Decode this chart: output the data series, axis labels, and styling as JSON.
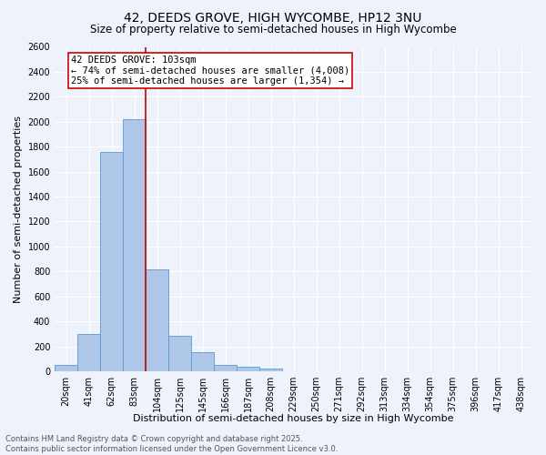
{
  "title": "42, DEEDS GROVE, HIGH WYCOMBE, HP12 3NU",
  "subtitle": "Size of property relative to semi-detached houses in High Wycombe",
  "xlabel": "Distribution of semi-detached houses by size in High Wycombe",
  "ylabel": "Number of semi-detached properties",
  "bin_labels": [
    "20sqm",
    "41sqm",
    "62sqm",
    "83sqm",
    "104sqm",
    "125sqm",
    "145sqm",
    "166sqm",
    "187sqm",
    "208sqm",
    "229sqm",
    "250sqm",
    "271sqm",
    "292sqm",
    "313sqm",
    "334sqm",
    "354sqm",
    "375sqm",
    "396sqm",
    "417sqm",
    "438sqm"
  ],
  "bar_values": [
    50,
    300,
    1760,
    2020,
    820,
    285,
    155,
    50,
    35,
    25,
    0,
    0,
    0,
    0,
    0,
    0,
    0,
    0,
    0,
    0,
    0
  ],
  "bar_color": "#aec6e8",
  "bar_edge_color": "#5b9bd5",
  "vline_color": "#cc0000",
  "annotation_text": "42 DEEDS GROVE: 103sqm\n← 74% of semi-detached houses are smaller (4,008)\n25% of semi-detached houses are larger (1,354) →",
  "annotation_box_color": "#ffffff",
  "annotation_box_edge": "#cc0000",
  "ylim": [
    0,
    2600
  ],
  "yticks": [
    0,
    200,
    400,
    600,
    800,
    1000,
    1200,
    1400,
    1600,
    1800,
    2000,
    2200,
    2400,
    2600
  ],
  "footer_line1": "Contains HM Land Registry data © Crown copyright and database right 2025.",
  "footer_line2": "Contains public sector information licensed under the Open Government Licence v3.0.",
  "bg_color": "#eef2fb",
  "grid_color": "#ffffff",
  "title_fontsize": 10,
  "subtitle_fontsize": 8.5,
  "xlabel_fontsize": 8,
  "ylabel_fontsize": 8,
  "tick_fontsize": 7,
  "footer_fontsize": 6,
  "annotation_fontsize": 7.5
}
